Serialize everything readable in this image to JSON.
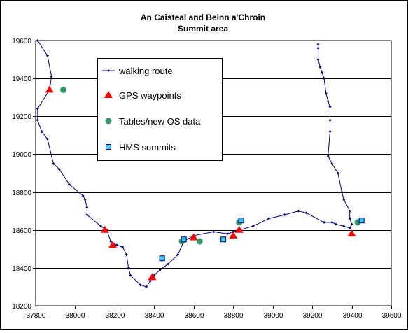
{
  "chart_data": {
    "type": "scatter",
    "title": "An Caisteal and Beinn a'Chroin",
    "subtitle": "Summit area",
    "xlim": [
      37800,
      39600
    ],
    "ylim": [
      18200,
      19600
    ],
    "x_ticks": [
      37800,
      38000,
      38200,
      38400,
      38600,
      38800,
      39000,
      39200,
      39400,
      39600
    ],
    "y_ticks": [
      18200,
      18400,
      18600,
      18800,
      19000,
      19200,
      19400,
      19600
    ],
    "x_tick_labels": [
      "37800",
      "38000",
      "38200",
      "38400",
      "38600",
      "38800",
      "39000",
      "39200",
      "39400",
      "39600"
    ],
    "y_tick_labels": [
      "18200",
      "18400",
      "18600",
      "18800",
      "19000",
      "19200",
      "19400",
      "19600"
    ],
    "grid": "horizontal major gridlines",
    "legend_position": "upper-left inside plot",
    "colors": {
      "route": "#000080",
      "gps": "#ff0000",
      "tables": "#339966",
      "hms_fill": "#33ccff",
      "hms_edge": "#000080",
      "frame": "#000000",
      "gridline": "#000000",
      "plot_bg": "#ffffff"
    },
    "series": [
      {
        "name": "walking route",
        "style": "line-with-small-markers",
        "points": [
          [
            37810,
            19600
          ],
          [
            37860,
            19520
          ],
          [
            37880,
            19410
          ],
          [
            37870,
            19340
          ],
          [
            37810,
            19240
          ],
          [
            37810,
            19180
          ],
          [
            37830,
            19120
          ],
          [
            37860,
            19080
          ],
          [
            37890,
            18950
          ],
          [
            37920,
            18920
          ],
          [
            37970,
            18840
          ],
          [
            38040,
            18780
          ],
          [
            38050,
            18760
          ],
          [
            38060,
            18720
          ],
          [
            38060,
            18680
          ],
          [
            38130,
            18620
          ],
          [
            38160,
            18600
          ],
          [
            38180,
            18540
          ],
          [
            38210,
            18520
          ],
          [
            38240,
            18510
          ],
          [
            38260,
            18470
          ],
          [
            38270,
            18400
          ],
          [
            38280,
            18360
          ],
          [
            38330,
            18310
          ],
          [
            38360,
            18300
          ],
          [
            38380,
            18330
          ],
          [
            38400,
            18360
          ],
          [
            38430,
            18390
          ],
          [
            38470,
            18420
          ],
          [
            38520,
            18470
          ],
          [
            38550,
            18540
          ],
          [
            38600,
            18570
          ],
          [
            38700,
            18590
          ],
          [
            38770,
            18580
          ],
          [
            38800,
            18590
          ],
          [
            38900,
            18620
          ],
          [
            38980,
            18660
          ],
          [
            39060,
            18680
          ],
          [
            39130,
            18700
          ],
          [
            39170,
            18690
          ],
          [
            39260,
            18640
          ],
          [
            39300,
            18640
          ],
          [
            39320,
            18630
          ],
          [
            39360,
            18620
          ],
          [
            39390,
            18610
          ],
          [
            39400,
            18630
          ],
          [
            39390,
            18660
          ],
          [
            39390,
            18700
          ],
          [
            39360,
            18760
          ],
          [
            39350,
            18800
          ],
          [
            39330,
            18900
          ],
          [
            39300,
            18950
          ],
          [
            39280,
            18990
          ],
          [
            39290,
            19120
          ],
          [
            39290,
            19180
          ],
          [
            39290,
            19250
          ],
          [
            39280,
            19280
          ],
          [
            39270,
            19320
          ],
          [
            39260,
            19400
          ],
          [
            39250,
            19430
          ],
          [
            39240,
            19460
          ],
          [
            39230,
            19500
          ],
          [
            39230,
            19560
          ],
          [
            39230,
            19580
          ]
        ]
      },
      {
        "name": "GPS waypoints",
        "style": "triangle",
        "points": [
          [
            37870,
            19340
          ],
          [
            38150,
            18600
          ],
          [
            38190,
            18520
          ],
          [
            38390,
            18350
          ],
          [
            38600,
            18560
          ],
          [
            38800,
            18570
          ],
          [
            38830,
            18600
          ],
          [
            39400,
            18580
          ]
        ]
      },
      {
        "name": "Tables/new OS data",
        "style": "circle",
        "points": [
          [
            37940,
            19340
          ],
          [
            38540,
            18540
          ],
          [
            38630,
            18540
          ],
          [
            38830,
            18640
          ],
          [
            39430,
            18640
          ]
        ]
      },
      {
        "name": "HMS summits",
        "style": "square",
        "points": [
          [
            38440,
            18450
          ],
          [
            38550,
            18550
          ],
          [
            38750,
            18550
          ],
          [
            38840,
            18650
          ],
          [
            39450,
            18650
          ]
        ]
      }
    ]
  }
}
